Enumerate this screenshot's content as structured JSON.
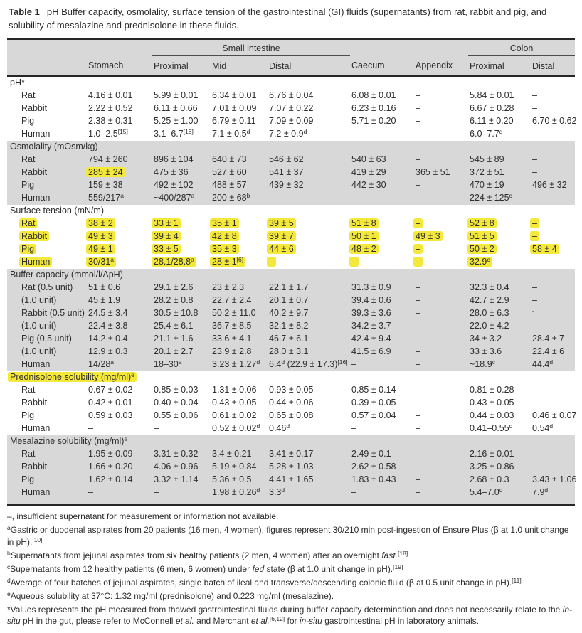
{
  "title": {
    "label": "Table 1",
    "text": "pH Buffer capacity, osmolality, surface tension of the gastrointestinal (GI) fluids (supernatants) from rat, rabbit and pig, and solubility of mesalazine and prednisolone in these fluids."
  },
  "colors": {
    "highlight_yellow": "#f4e93b",
    "band_gray": "#d8d8d8",
    "rule_black": "#262626"
  },
  "table": {
    "header": {
      "group_si": "Small intestine",
      "group_colon": "Colon",
      "cols": [
        "",
        "Stomach",
        "Proximal",
        "Mid",
        "Distal",
        "Caecum",
        "Appendix",
        "Proximal",
        "Distal"
      ]
    },
    "sections": [
      {
        "label": "pH*",
        "shade": false,
        "rows": [
          {
            "label": "Rat",
            "cells": [
              "4.16 ± 0.01",
              "5.99 ± 0.01",
              "6.34 ± 0.01",
              "6.76 ± 0.04",
              "6.08 ± 0.01",
              "–",
              "5.84 ± 0.01",
              "–"
            ]
          },
          {
            "label": "Rabbit",
            "cells": [
              "2.22 ± 0.52",
              "6.11 ± 0.66",
              "7.01 ± 0.09",
              "7.07 ± 0.22",
              "6.23 ± 0.16",
              "–",
              "6.67 ± 0.28",
              "–"
            ]
          },
          {
            "label": "Pig",
            "cells": [
              "2.38 ± 0.31",
              "5.25 ± 1.00",
              "6.79 ± 0.11",
              "7.09 ± 0.09",
              "5.71 ± 0.20",
              "–",
              "6.11 ± 0.20",
              "6.70 ± 0.62"
            ]
          },
          {
            "label": "Human",
            "cells": [
              "1.0–2.5`[15]`",
              "3.1–6.7`[16]`",
              "7.1 ± 0.5`d`",
              "7.2 ± 0.9`d`",
              "–",
              "–",
              "6.0–7.7`d`",
              "–"
            ]
          }
        ]
      },
      {
        "label": "Osmolality (mOsm/kg)",
        "shade": true,
        "rows": [
          {
            "label": "Rat",
            "cells": [
              "794 ± 260",
              "896 ± 104",
              "640 ± 73",
              "546 ± 62",
              "540 ± 63",
              "–",
              "545 ± 89",
              "–"
            ]
          },
          {
            "label": "Rabbit",
            "cells": [
              {
                "t": "285 ± 24",
                "hl": true
              },
              "475 ± 36",
              "527 ± 60",
              "541 ± 37",
              "419 ± 29",
              "365 ± 51",
              "372 ± 51",
              "–"
            ]
          },
          {
            "label": "Pig",
            "cells": [
              "159 ± 38",
              "492 ± 102",
              "488 ± 57",
              "439 ± 32",
              "442 ± 30",
              "–",
              "470 ± 19",
              "496 ± 32"
            ]
          },
          {
            "label": "Human",
            "cells": [
              "559/217`a`",
              "~400/287`a`",
              "200 ± 68`b`",
              "–",
              "–",
              "–",
              "224 ± 125`c`",
              "–"
            ]
          }
        ]
      },
      {
        "label": "Surface tension (mN/m)",
        "shade": false,
        "rows": [
          {
            "label": "Rat",
            "label_hl": true,
            "cells": [
              {
                "t": "38 ± 2",
                "hl": true
              },
              {
                "t": "33 ± 1",
                "hl": true
              },
              {
                "t": "35 ± 1",
                "hl": true
              },
              {
                "t": "39 ± 5",
                "hl": true
              },
              {
                "t": "51 ± 8",
                "hl": true
              },
              {
                "t": "–",
                "hl": true
              },
              {
                "t": "52 ± 8",
                "hl": true
              },
              {
                "t": "–",
                "hl": true
              }
            ]
          },
          {
            "label": "Rabbit",
            "label_hl": true,
            "cells": [
              {
                "t": "49 ± 3",
                "hl": true
              },
              {
                "t": "39 ± 4",
                "hl": true
              },
              {
                "t": "42 ± 8",
                "hl": true
              },
              {
                "t": "39 ± 7",
                "hl": true
              },
              {
                "t": "50 ± 1",
                "hl": true
              },
              {
                "t": "49 ± 3",
                "hl": true
              },
              {
                "t": "51 ± 5",
                "hl": true
              },
              {
                "t": "–",
                "hl": true
              }
            ]
          },
          {
            "label": "Pig",
            "label_hl": true,
            "cells": [
              {
                "t": "49 ± 1",
                "hl": true
              },
              {
                "t": "33 ± 5",
                "hl": true
              },
              {
                "t": "35 ± 3",
                "hl": true
              },
              {
                "t": "44 ± 6",
                "hl": true
              },
              {
                "t": "48 ± 2",
                "hl": true
              },
              {
                "t": "–",
                "hl": true
              },
              {
                "t": "50 ± 2",
                "hl": true
              },
              {
                "t": "58 ± 4",
                "hl": true
              }
            ]
          },
          {
            "label": "Human",
            "label_hl": true,
            "cells": [
              {
                "t": "30/31`a`",
                "hl": true
              },
              {
                "t": "28.1/28.8`a`",
                "hl": true
              },
              {
                "t": "28 ± 1`[6]`",
                "hl": true
              },
              {
                "t": "–",
                "hl": true
              },
              {
                "t": "–",
                "hl": true
              },
              {
                "t": "–",
                "hl": true
              },
              {
                "t": "32.9`c`",
                "hl": true
              },
              "–"
            ]
          }
        ]
      },
      {
        "label": "Buffer capacity (mmol/l/ΔpH)",
        "shade": true,
        "rows": [
          {
            "label": "Rat (0.5 unit)",
            "cells": [
              "51 ± 0.6",
              "29.1 ± 2.6",
              "23 ± 2.3",
              "22.1 ± 1.7",
              "31.3 ± 0.9",
              "–",
              "32.3 ± 0.4",
              "–"
            ]
          },
          {
            "label": "(1.0 unit)",
            "cells": [
              "45 ± 1.9",
              "28.2 ± 0.8",
              "22.7 ± 2.4",
              "20.1 ± 0.7",
              "39.4 ± 0.6",
              "–",
              "42.7 ± 2.9",
              "–"
            ]
          },
          {
            "label": "Rabbit (0.5 unit)",
            "cells": [
              "24.5 ± 3.4",
              "30.5 ± 10.8",
              "50.2 ± 11.0",
              "40.2 ± 9.7",
              "39.3 ± 3.6",
              "–",
              "28.0 ± 6.3",
              "`-`"
            ]
          },
          {
            "label": "(1.0 unit)",
            "cells": [
              "22.4 ± 3.8",
              "25.4 ± 6.1",
              "36.7 ± 8.5",
              "32.1 ± 8.2",
              "34.2 ± 3.7",
              "–",
              "22.0 ± 4.2",
              "–"
            ]
          },
          {
            "label": "Pig (0.5 unit)",
            "cells": [
              "14.2 ± 0.4",
              "21.1 ± 1.6",
              "33.6 ± 4.1",
              "46.7 ± 6.1",
              "42.4 ± 9.4",
              "–",
              "34 ± 3.2",
              "28.4 ± 7"
            ]
          },
          {
            "label": "(1.0 unit)",
            "cells": [
              "12.9 ± 0.3",
              "20.1 ± 2.7",
              "23.9 ± 2.8",
              "28.0 ± 3.1",
              "41.5 ± 6.9",
              "–",
              "33 ± 3.6",
              "22.4 ± 6"
            ]
          },
          {
            "label": "Human",
            "cells": [
              "14/28`a`",
              "18–30`a`",
              "3.23 ± 1.27`d`",
              "6.4`d` (22.9 ± 17.3)`[16]`",
              "–",
              "–",
              "~18.9`c`",
              "44.4`d`"
            ]
          }
        ]
      },
      {
        "label": "Prednisolone solubility (mg/ml)`e`",
        "label_hl": true,
        "shade": false,
        "rows": [
          {
            "label": "Rat",
            "cells": [
              "0.67 ± 0.02",
              "0.85 ± 0.03",
              "1.31 ± 0.06",
              "0.93 ± 0.05",
              "0.85 ± 0.14",
              "–",
              "0.81 ± 0.28",
              "–"
            ]
          },
          {
            "label": "Rabbit",
            "cells": [
              "0.42 ± 0.01",
              "0.40 ± 0.04",
              "0.43 ± 0.05",
              "0.44 ± 0.06",
              "0.39 ± 0.05",
              "–",
              "0.43 ± 0.05",
              "–"
            ]
          },
          {
            "label": "Pig",
            "cells": [
              "0.59 ± 0.03",
              "0.55 ± 0.06",
              "0.61 ± 0.02",
              "0.65 ± 0.08",
              "0.57 ± 0.04",
              "–",
              "0.44 ± 0.03",
              "0.46 ± 0.07"
            ]
          },
          {
            "label": "Human",
            "cells": [
              "–",
              "–",
              "0.52 ± 0.02`d`",
              "0.46`d`",
              "–",
              "–",
              "0.41–0.55`d`",
              "0.54`d`"
            ]
          }
        ]
      },
      {
        "label": "Mesalazine solubility (mg/ml)`e`",
        "shade": true,
        "rows": [
          {
            "label": "Rat",
            "cells": [
              "1.95 ± 0.09",
              "3.31 ± 0.32",
              "3.4 ± 0.21",
              "3.41 ± 0.17",
              "2.49 ± 0.1",
              "–",
              "2.16 ± 0.01",
              "–"
            ]
          },
          {
            "label": "Rabbit",
            "cells": [
              "1.66 ± 0.20",
              "4.06 ± 0.96",
              "5.19 ± 0.84",
              "5.28 ± 1.03",
              "2.62 ± 0.58",
              "–",
              "3.25 ± 0.86",
              "–"
            ]
          },
          {
            "label": "Pig",
            "cells": [
              "1.62 ± 0.14",
              "3.32 ± 1.14",
              "5.36 ± 0.5",
              "4.41 ± 1.65",
              "1.83 ± 0.43",
              "–",
              "2.68 ± 0.3",
              "3.43 ± 1.06"
            ]
          },
          {
            "label": "Human",
            "cells": [
              "–",
              "–",
              "1.98 ± 0.26`d`",
              "3.3`d`",
              "–",
              "–",
              "5.4–7.0`d`",
              "7.9`d`"
            ]
          }
        ]
      }
    ]
  },
  "footnotes": [
    "–, insufficient supernatant for measurement or information not available.",
    "`a`Gastric or duodenal aspirates from 20 patients (16 men, 4 women), figures represent 30/210 min post-ingestion of Ensure Plus (β at 1.0 unit change in pH).`[10]`",
    "`b`Supernatants from jejunal aspirates from six healthy patients (2 men, 4 women) after an overnight _fast._`[18]`",
    "`c`Supernatants from 12 healthy patients (6 men, 6 women) under _fed_ state (β at 1.0 unit change in pH).`[19]`",
    "`d`Average of four batches of jejunal aspirates, single batch of ileal and transverse/descending colonic fluid (β at 0.5 unit change in pH).`[11]`",
    "`e`Aqueous solubility at 37°C: 1.32 mg/ml (prednisolone) and 0.223 mg/ml (mesalazine).",
    "*Values represents the pH measured from thawed gastrointestinal fluids during buffer capacity determination and does not necessarily relate to the _in-situ_ pH in the gut, please refer to McConnell _et al._ and Merchant _et al._`[6,12]` for _in-situ_ gastrointestinal pH in laboratory animals."
  ]
}
